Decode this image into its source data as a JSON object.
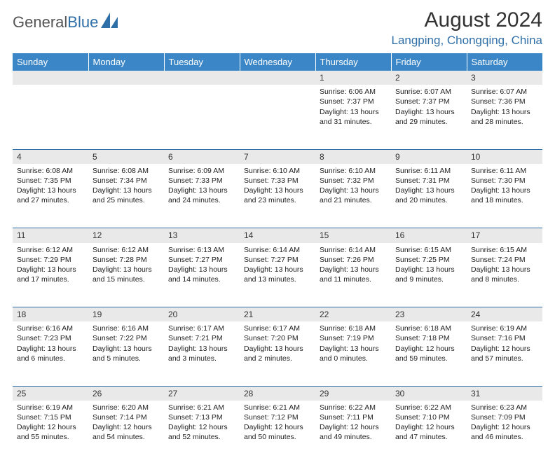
{
  "brand": {
    "name_part1": "General",
    "name_part2": "Blue"
  },
  "title": "August 2024",
  "location": "Langping, Chongqing, China",
  "header_bg": "#3b86c6",
  "accent": "#2f6fa8",
  "dayheader_bg": "#e9e9e9",
  "columns": [
    "Sunday",
    "Monday",
    "Tuesday",
    "Wednesday",
    "Thursday",
    "Friday",
    "Saturday"
  ],
  "weeks": [
    [
      null,
      null,
      null,
      null,
      {
        "n": "1",
        "sr": "6:06 AM",
        "ss": "7:37 PM",
        "dl": "13 hours and 31 minutes."
      },
      {
        "n": "2",
        "sr": "6:07 AM",
        "ss": "7:37 PM",
        "dl": "13 hours and 29 minutes."
      },
      {
        "n": "3",
        "sr": "6:07 AM",
        "ss": "7:36 PM",
        "dl": "13 hours and 28 minutes."
      }
    ],
    [
      {
        "n": "4",
        "sr": "6:08 AM",
        "ss": "7:35 PM",
        "dl": "13 hours and 27 minutes."
      },
      {
        "n": "5",
        "sr": "6:08 AM",
        "ss": "7:34 PM",
        "dl": "13 hours and 25 minutes."
      },
      {
        "n": "6",
        "sr": "6:09 AM",
        "ss": "7:33 PM",
        "dl": "13 hours and 24 minutes."
      },
      {
        "n": "7",
        "sr": "6:10 AM",
        "ss": "7:33 PM",
        "dl": "13 hours and 23 minutes."
      },
      {
        "n": "8",
        "sr": "6:10 AM",
        "ss": "7:32 PM",
        "dl": "13 hours and 21 minutes."
      },
      {
        "n": "9",
        "sr": "6:11 AM",
        "ss": "7:31 PM",
        "dl": "13 hours and 20 minutes."
      },
      {
        "n": "10",
        "sr": "6:11 AM",
        "ss": "7:30 PM",
        "dl": "13 hours and 18 minutes."
      }
    ],
    [
      {
        "n": "11",
        "sr": "6:12 AM",
        "ss": "7:29 PM",
        "dl": "13 hours and 17 minutes."
      },
      {
        "n": "12",
        "sr": "6:12 AM",
        "ss": "7:28 PM",
        "dl": "13 hours and 15 minutes."
      },
      {
        "n": "13",
        "sr": "6:13 AM",
        "ss": "7:27 PM",
        "dl": "13 hours and 14 minutes."
      },
      {
        "n": "14",
        "sr": "6:14 AM",
        "ss": "7:27 PM",
        "dl": "13 hours and 13 minutes."
      },
      {
        "n": "15",
        "sr": "6:14 AM",
        "ss": "7:26 PM",
        "dl": "13 hours and 11 minutes."
      },
      {
        "n": "16",
        "sr": "6:15 AM",
        "ss": "7:25 PM",
        "dl": "13 hours and 9 minutes."
      },
      {
        "n": "17",
        "sr": "6:15 AM",
        "ss": "7:24 PM",
        "dl": "13 hours and 8 minutes."
      }
    ],
    [
      {
        "n": "18",
        "sr": "6:16 AM",
        "ss": "7:23 PM",
        "dl": "13 hours and 6 minutes."
      },
      {
        "n": "19",
        "sr": "6:16 AM",
        "ss": "7:22 PM",
        "dl": "13 hours and 5 minutes."
      },
      {
        "n": "20",
        "sr": "6:17 AM",
        "ss": "7:21 PM",
        "dl": "13 hours and 3 minutes."
      },
      {
        "n": "21",
        "sr": "6:17 AM",
        "ss": "7:20 PM",
        "dl": "13 hours and 2 minutes."
      },
      {
        "n": "22",
        "sr": "6:18 AM",
        "ss": "7:19 PM",
        "dl": "13 hours and 0 minutes."
      },
      {
        "n": "23",
        "sr": "6:18 AM",
        "ss": "7:18 PM",
        "dl": "12 hours and 59 minutes."
      },
      {
        "n": "24",
        "sr": "6:19 AM",
        "ss": "7:16 PM",
        "dl": "12 hours and 57 minutes."
      }
    ],
    [
      {
        "n": "25",
        "sr": "6:19 AM",
        "ss": "7:15 PM",
        "dl": "12 hours and 55 minutes."
      },
      {
        "n": "26",
        "sr": "6:20 AM",
        "ss": "7:14 PM",
        "dl": "12 hours and 54 minutes."
      },
      {
        "n": "27",
        "sr": "6:21 AM",
        "ss": "7:13 PM",
        "dl": "12 hours and 52 minutes."
      },
      {
        "n": "28",
        "sr": "6:21 AM",
        "ss": "7:12 PM",
        "dl": "12 hours and 50 minutes."
      },
      {
        "n": "29",
        "sr": "6:22 AM",
        "ss": "7:11 PM",
        "dl": "12 hours and 49 minutes."
      },
      {
        "n": "30",
        "sr": "6:22 AM",
        "ss": "7:10 PM",
        "dl": "12 hours and 47 minutes."
      },
      {
        "n": "31",
        "sr": "6:23 AM",
        "ss": "7:09 PM",
        "dl": "12 hours and 46 minutes."
      }
    ]
  ],
  "labels": {
    "sunrise": "Sunrise: ",
    "sunset": "Sunset: ",
    "daylight": "Daylight: "
  }
}
